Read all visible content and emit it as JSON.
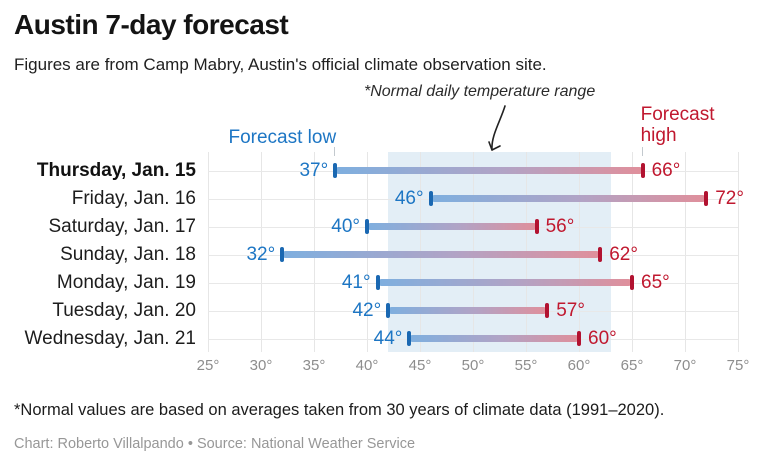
{
  "header": {
    "title": "Austin 7-day forecast",
    "subtitle": "Figures are from Camp Mabry, Austin's official climate observation site."
  },
  "annotation": {
    "text": "*Normal daily temperature range"
  },
  "chart_data": {
    "type": "bar",
    "subtype": "range-dumbbell",
    "title": "Austin 7-day forecast",
    "categories": [
      "Thursday, Jan. 15",
      "Friday, Jan. 16",
      "Saturday, Jan. 17",
      "Sunday, Jan. 18",
      "Monday, Jan. 19",
      "Tuesday, Jan. 20",
      "Wednesday, Jan. 21"
    ],
    "series": [
      {
        "name": "Forecast low",
        "values": [
          37,
          46,
          40,
          32,
          41,
          42,
          44
        ]
      },
      {
        "name": "Forecast high",
        "values": [
          66,
          72,
          56,
          62,
          65,
          57,
          60
        ]
      }
    ],
    "highlighted_category": "Thursday, Jan. 15",
    "xlim": [
      25,
      75
    ],
    "x_ticks": [
      25,
      30,
      35,
      40,
      45,
      50,
      55,
      60,
      65,
      70,
      75
    ],
    "tick_suffix": "°",
    "value_suffix": "°",
    "grid": true,
    "legend_position": "top-inline",
    "normal_range": {
      "from": 42,
      "to": 63,
      "label": "*Normal daily temperature range"
    }
  },
  "footer": {
    "note": "*Normal values are based on averages taken from 30 years of climate data (1991–2020).",
    "credit": "Chart: Roberto Villalpando • Source: National Weather Service"
  },
  "colors": {
    "low_text": "#1d76c4",
    "high_text": "#c0182f",
    "low_cap": "#1a68b2",
    "high_cap": "#b21230",
    "bar_gradient_low": "#7eafdf",
    "bar_gradient_high": "#e08f9b",
    "normal_band": "#e3eef6"
  }
}
